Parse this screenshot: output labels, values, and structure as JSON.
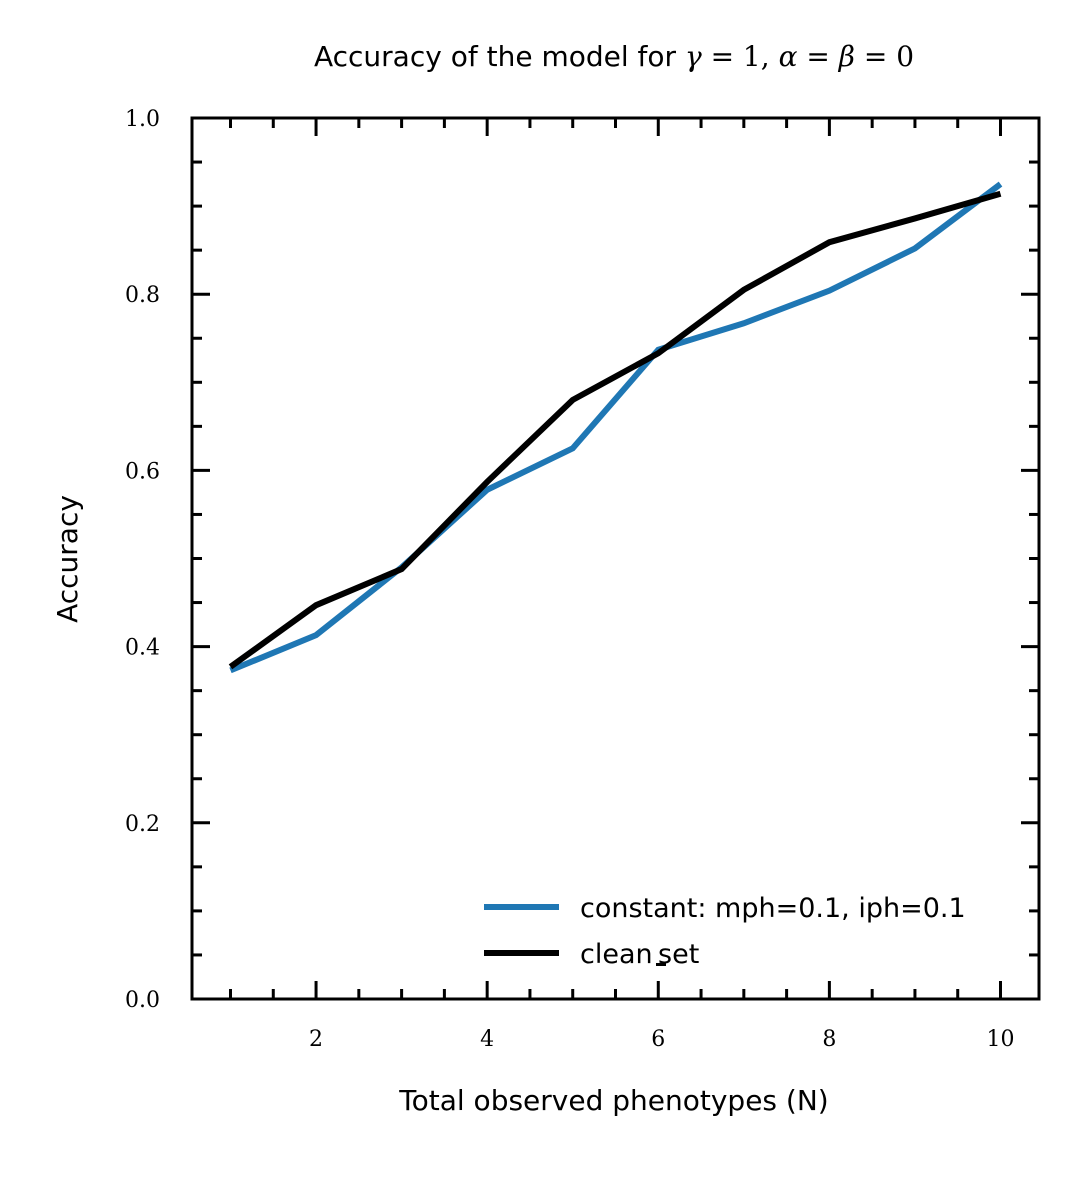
{
  "chart_data": {
    "type": "line",
    "title": {
      "prefix": "Accuracy of the model for ",
      "gamma": "γ",
      "eq1": " = 1, ",
      "alpha": "α",
      "eq2": " = ",
      "beta": "β",
      "eq3": " = 0"
    },
    "xlabel": "Total observed phenotypes (N)",
    "ylabel": "Accuracy",
    "xlim": [
      0.55,
      10.45
    ],
    "ylim": [
      0.0,
      1.0
    ],
    "x_major_ticks": [
      2,
      4,
      6,
      8,
      10
    ],
    "x_tick_labels": [
      "2",
      "4",
      "6",
      "8",
      "10"
    ],
    "x_minor_ticks": [
      1,
      3,
      5,
      7,
      9
    ],
    "y_major_ticks": [
      0.0,
      0.2,
      0.4,
      0.6,
      0.8,
      1.0
    ],
    "y_tick_labels": [
      "0.0",
      "0.2",
      "0.4",
      "0.6",
      "0.8",
      "1.0"
    ],
    "y_minor_step": 0.05,
    "grid": false,
    "legend_position": "lower-right",
    "x": [
      1,
      2,
      3,
      4,
      5,
      6,
      7,
      8,
      9,
      10
    ],
    "series": [
      {
        "name": "constant: mph=0.1, iph=0.1",
        "color": "#1f77b4",
        "values": [
          0.373,
          0.413,
          0.49,
          0.578,
          0.625,
          0.737,
          0.767,
          0.804,
          0.852,
          0.925
        ]
      },
      {
        "name": "clean_set",
        "legend_text_prefix": "clean",
        "legend_text_suffix": "set",
        "color": "#000000",
        "values": [
          0.377,
          0.447,
          0.488,
          0.587,
          0.68,
          0.733,
          0.805,
          0.859,
          0.886,
          0.914
        ]
      }
    ]
  }
}
